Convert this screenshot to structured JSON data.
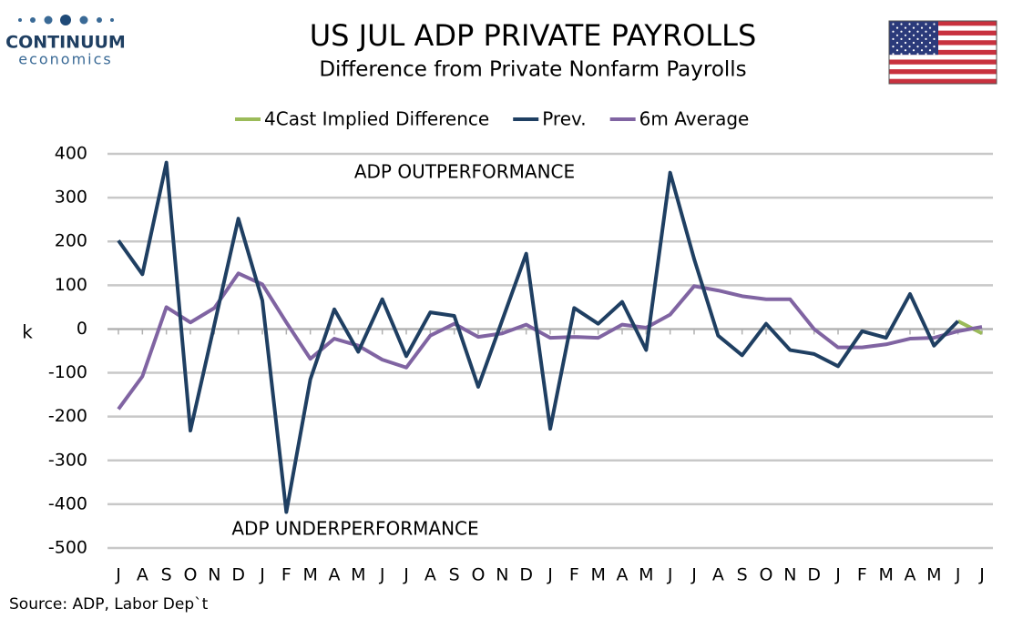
{
  "logo": {
    "name": "CONTINUUM",
    "tagline": "economics"
  },
  "source": "Source: ADP, Labor Dep`t",
  "chart_data": {
    "type": "line",
    "title": "US JUL ADP PRIVATE PAYROLLS",
    "subtitle": "Difference from Private Nonfarm Payrolls",
    "y_label": "k",
    "annotations": [
      "ADP OUTPERFORMANCE",
      "ADP UNDERPERFORMANCE"
    ],
    "categories": [
      "J",
      "A",
      "S",
      "O",
      "N",
      "D",
      "J",
      "F",
      "M",
      "A",
      "M",
      "J",
      "J",
      "A",
      "S",
      "O",
      "N",
      "D",
      "J",
      "F",
      "M",
      "A",
      "M",
      "J",
      "J",
      "A",
      "S",
      "O",
      "N",
      "D",
      "J",
      "F",
      "M",
      "A",
      "M",
      "J",
      "J"
    ],
    "ylim": [
      -500,
      400
    ],
    "yticks": [
      -500,
      -400,
      -300,
      -200,
      -100,
      0,
      100,
      200,
      300,
      400
    ],
    "grid": true,
    "legend": "top",
    "series": [
      {
        "name": "4Cast Implied Difference",
        "color": "#9bbb59",
        "values": [
          null,
          null,
          null,
          null,
          null,
          null,
          null,
          null,
          null,
          null,
          null,
          null,
          null,
          null,
          null,
          null,
          null,
          null,
          null,
          null,
          null,
          null,
          null,
          null,
          null,
          null,
          null,
          null,
          null,
          null,
          null,
          null,
          null,
          null,
          null,
          18,
          -10
        ]
      },
      {
        "name": "Prev.",
        "color": "#1f3f62",
        "values": [
          202,
          125,
          380,
          -232,
          10,
          252,
          65,
          -418,
          -115,
          45,
          -52,
          68,
          -62,
          38,
          30,
          -132,
          20,
          172,
          -228,
          48,
          12,
          62,
          -48,
          357,
          160,
          -15,
          -60,
          12,
          -48,
          -57,
          -85,
          -5,
          -20,
          80,
          -38,
          18,
          null
        ]
      },
      {
        "name": "6m Average",
        "color": "#8064a2",
        "values": [
          -183,
          -108,
          50,
          15,
          48,
          127,
          102,
          15,
          -68,
          -22,
          -38,
          -70,
          -88,
          -15,
          12,
          -18,
          -10,
          10,
          -20,
          -18,
          -20,
          10,
          3,
          33,
          98,
          88,
          75,
          68,
          68,
          0,
          -42,
          -42,
          -35,
          -22,
          -20,
          -5,
          5
        ]
      }
    ]
  }
}
